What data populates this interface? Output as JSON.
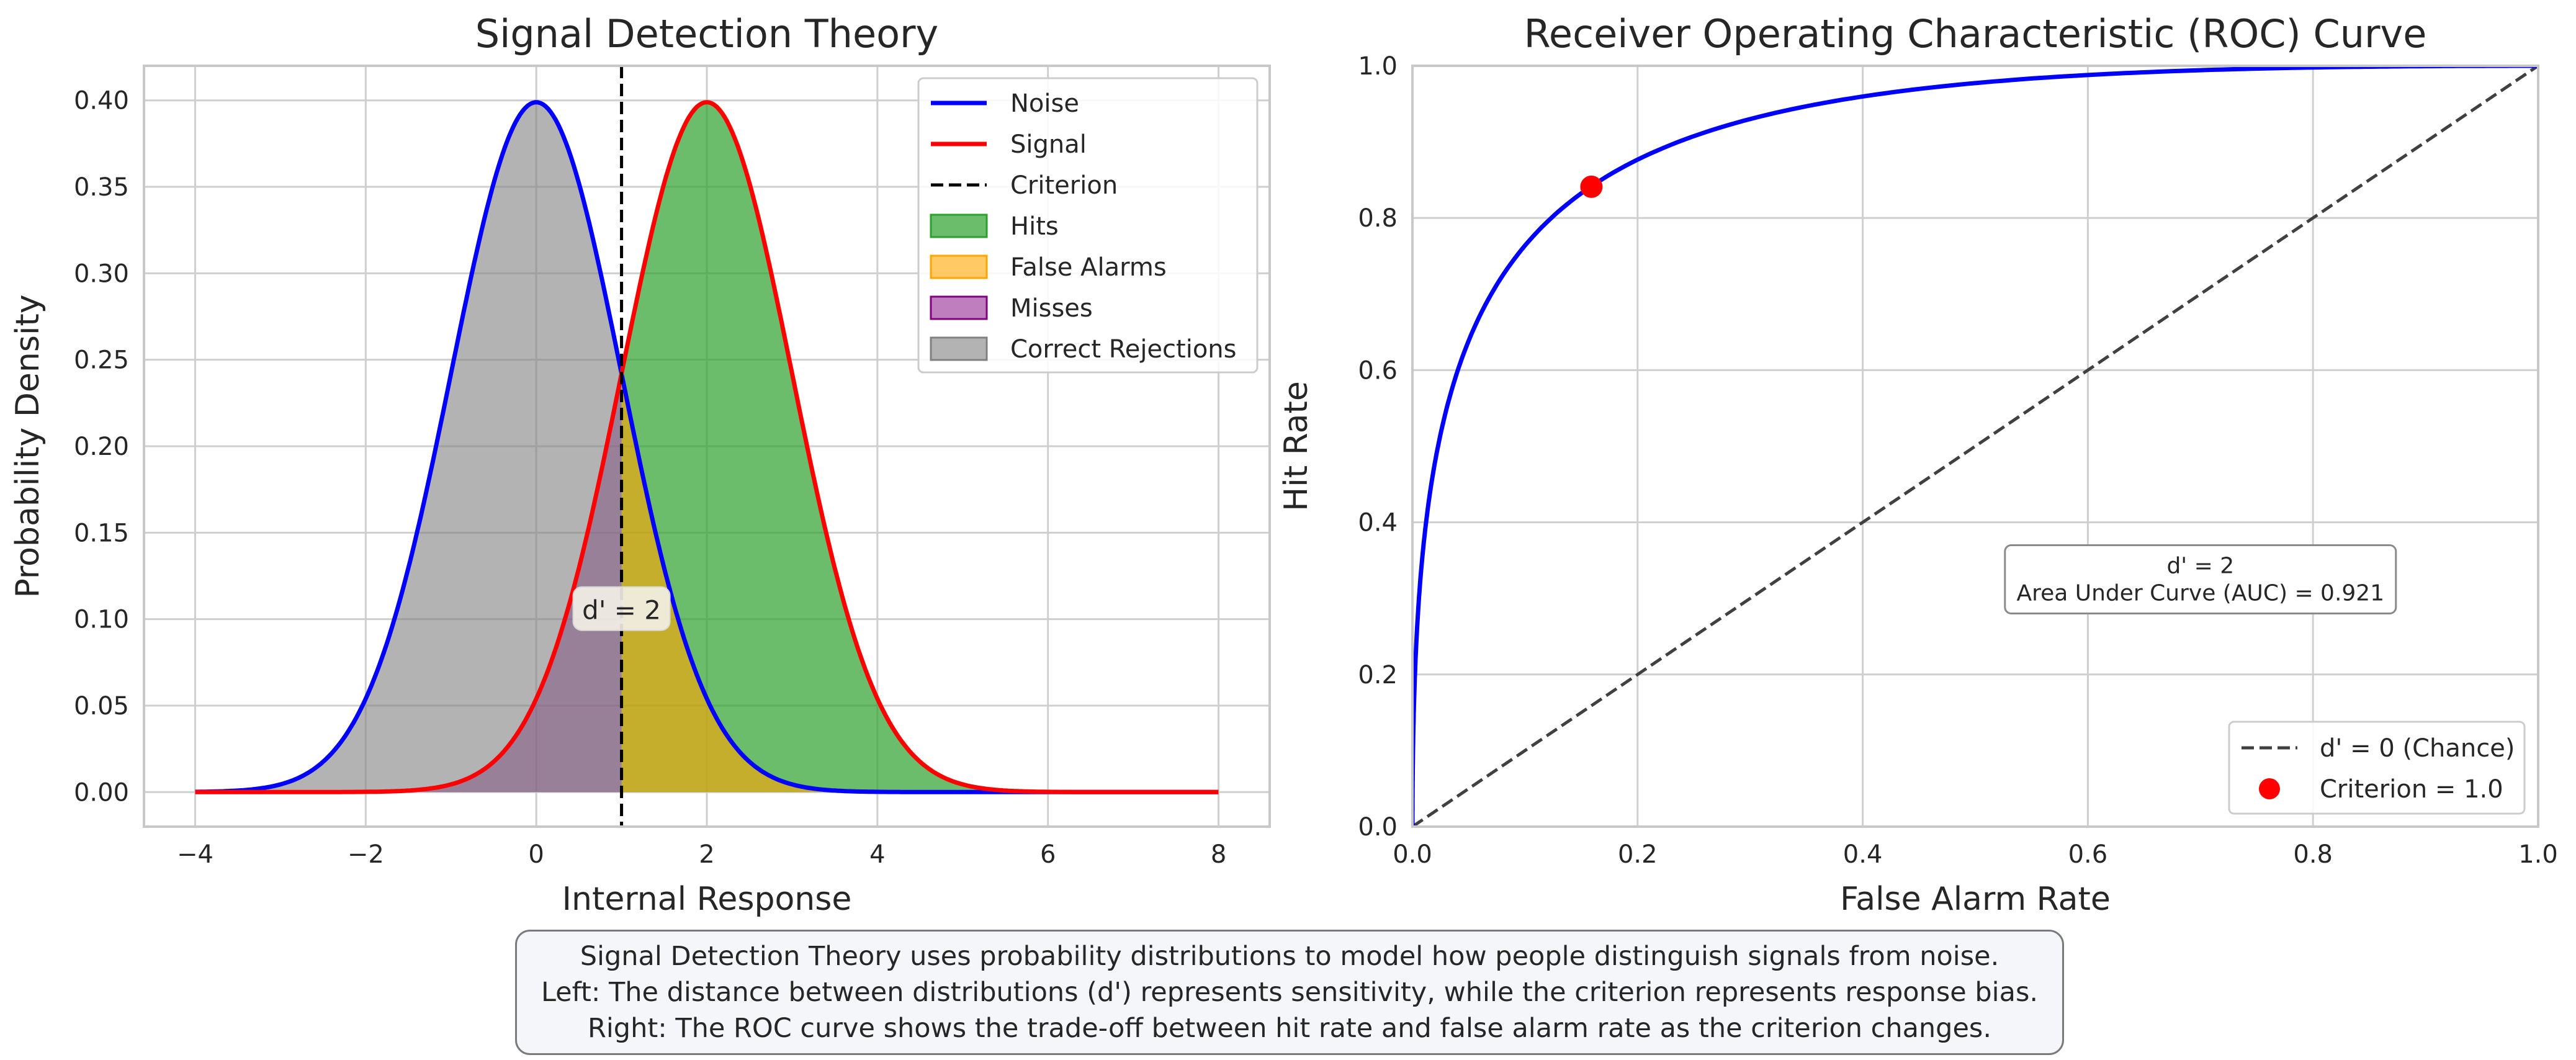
{
  "chart_data": [
    {
      "type": "area",
      "title": "Signal Detection Theory",
      "xlabel": "Internal Response",
      "ylabel": "Probability Density",
      "xlim": [
        -4.6,
        8.6
      ],
      "ylim": [
        -0.02,
        0.42
      ],
      "x_ticks": [
        -4,
        -2,
        0,
        2,
        4,
        6,
        8
      ],
      "x_tick_labels": [
        "−4",
        "−2",
        "0",
        "2",
        "4",
        "6",
        "8"
      ],
      "y_ticks": [
        0.0,
        0.05,
        0.1,
        0.15,
        0.2,
        0.25,
        0.3,
        0.35,
        0.4
      ],
      "y_tick_labels": [
        "0.00",
        "0.05",
        "0.10",
        "0.15",
        "0.20",
        "0.25",
        "0.30",
        "0.35",
        "0.40"
      ],
      "grid": true,
      "legend_position": "top-right",
      "series": [
        {
          "name": "Noise",
          "kind": "line",
          "color": "#0000ff",
          "distribution": "normal",
          "mean": 0,
          "sd": 1,
          "x_range": [
            -4,
            8
          ]
        },
        {
          "name": "Signal",
          "kind": "line",
          "color": "#ff0000",
          "distribution": "normal",
          "mean": 2,
          "sd": 1,
          "x_range": [
            -4,
            8
          ]
        }
      ],
      "criterion": {
        "name": "Criterion",
        "x": 1.0,
        "color": "#000000"
      },
      "regions": [
        {
          "name": "Hits",
          "color": "#2ca02c",
          "opacity": 0.7,
          "under": "Signal",
          "side": "right"
        },
        {
          "name": "False Alarms",
          "color": "#ffa500",
          "opacity": 0.6,
          "under": "Noise",
          "side": "right"
        },
        {
          "name": "Misses",
          "color": "#800080",
          "opacity": 0.5,
          "under": "Signal",
          "side": "left"
        },
        {
          "name": "Correct Rejections",
          "color": "#808080",
          "opacity": 0.6,
          "under": "Noise",
          "side": "left"
        }
      ],
      "annotation": {
        "text": "d' = 2",
        "x": 1.0,
        "y": 0.105
      }
    },
    {
      "type": "line",
      "title": "Receiver Operating Characteristic (ROC) Curve",
      "xlabel": "False Alarm Rate",
      "ylabel": "Hit Rate",
      "xlim": [
        0,
        1
      ],
      "ylim": [
        0,
        1
      ],
      "x_ticks": [
        0.0,
        0.2,
        0.4,
        0.6,
        0.8,
        1.0
      ],
      "x_tick_labels": [
        "0.0",
        "0.2",
        "0.4",
        "0.6",
        "0.8",
        "1.0"
      ],
      "y_ticks": [
        0.0,
        0.2,
        0.4,
        0.6,
        0.8,
        1.0
      ],
      "y_tick_labels": [
        "0.0",
        "0.2",
        "0.4",
        "0.6",
        "0.8",
        "1.0"
      ],
      "grid": true,
      "legend_position": "bottom-right",
      "series": [
        {
          "kind": "roc",
          "color": "#0000ff",
          "d_prime": 2
        },
        {
          "name": "d' = 0 (Chance)",
          "kind": "dashed-line",
          "color": "#404040",
          "x": [
            0,
            1
          ],
          "y": [
            0,
            1
          ]
        },
        {
          "name": "Criterion = 1.0",
          "kind": "point",
          "color": "#ff0000",
          "x": 0.159,
          "y": 0.841
        }
      ],
      "info_box": {
        "lines": [
          "d' = 2",
          "Area Under Curve (AUC) = 0.921"
        ],
        "x": 0.7,
        "y": 0.325
      }
    }
  ],
  "caption": {
    "line1": "Signal Detection Theory uses probability distributions to model how people distinguish signals from noise.",
    "line2": "Left: The distance between distributions (d') represents sensitivity, while the criterion represents response bias.",
    "line3": "Right: The ROC curve shows the trade-off between hit rate and false alarm rate as the criterion changes."
  }
}
